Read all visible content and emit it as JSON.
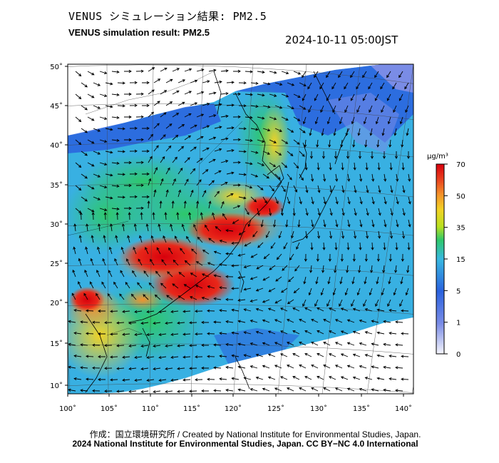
{
  "header": {
    "title_jp": "VENUS シミュレーション結果: PM2.5",
    "title_en": "VENUS simulation result: PM2.5",
    "timestamp": "2024-10-11 05:00JST"
  },
  "map": {
    "lon_ticks": [
      "100˚",
      "105˚",
      "110˚",
      "115˚",
      "120˚",
      "125˚",
      "130˚",
      "135˚",
      "140˚"
    ],
    "lat_ticks": [
      "50˚",
      "45˚",
      "40˚",
      "35˚",
      "30˚",
      "25˚",
      "20˚",
      "15˚",
      "10˚"
    ],
    "lon_range": [
      100,
      141.5
    ],
    "lat_range": [
      9,
      51
    ]
  },
  "colorbar": {
    "unit": "μg/m³",
    "levels": [
      "0",
      "1",
      "5",
      "15",
      "35",
      "50",
      "70"
    ],
    "colors": [
      "#f4f4fb",
      "#7a8ce6",
      "#2a62de",
      "#38b8e0",
      "#2ec86b",
      "#b8e020",
      "#f2d225",
      "#f4922a",
      "#e8401e",
      "#d8000c"
    ]
  },
  "footer": {
    "credit": "作成：国立環境研究所 / Created by National Institute for Environmental Studies, Japan.",
    "copyright": "2024 National Institute for Environmental Studies, Japan. CC BY−NC 4.0 International"
  }
}
